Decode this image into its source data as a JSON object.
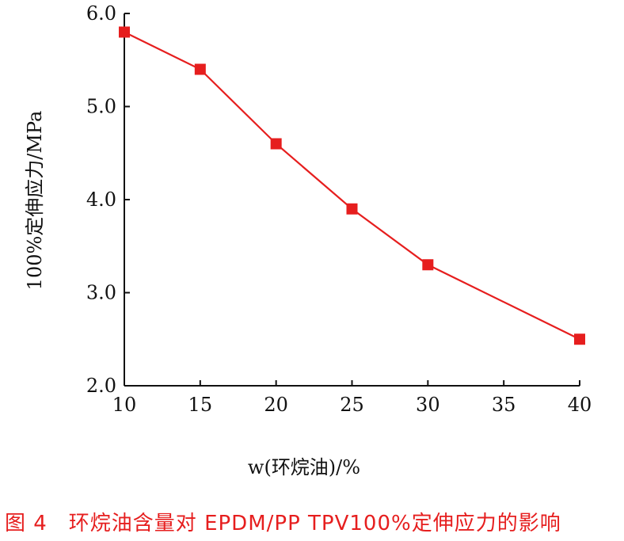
{
  "chart_data": {
    "type": "line",
    "x": [
      10,
      15,
      20,
      25,
      30,
      40
    ],
    "series": [
      {
        "values": [
          5.8,
          5.4,
          4.6,
          3.9,
          3.3,
          2.5
        ]
      }
    ],
    "xticks": [
      "10",
      "15",
      "20",
      "25",
      "30",
      "35",
      "40"
    ],
    "yticks": [
      "2.0",
      "3.0",
      "4.0",
      "5.0",
      "6.0"
    ],
    "xlim": [
      10,
      40
    ],
    "ylim": [
      2.0,
      6.0
    ],
    "xlabel": "w(环烷油)/%",
    "ylabel": "100%定伸应力/MPa",
    "grid": false,
    "series_color": "#e61e1e",
    "marker": "square"
  },
  "caption": "图 4　环烷油含量对 EPDM/PP TPV100%定伸应力的影响"
}
